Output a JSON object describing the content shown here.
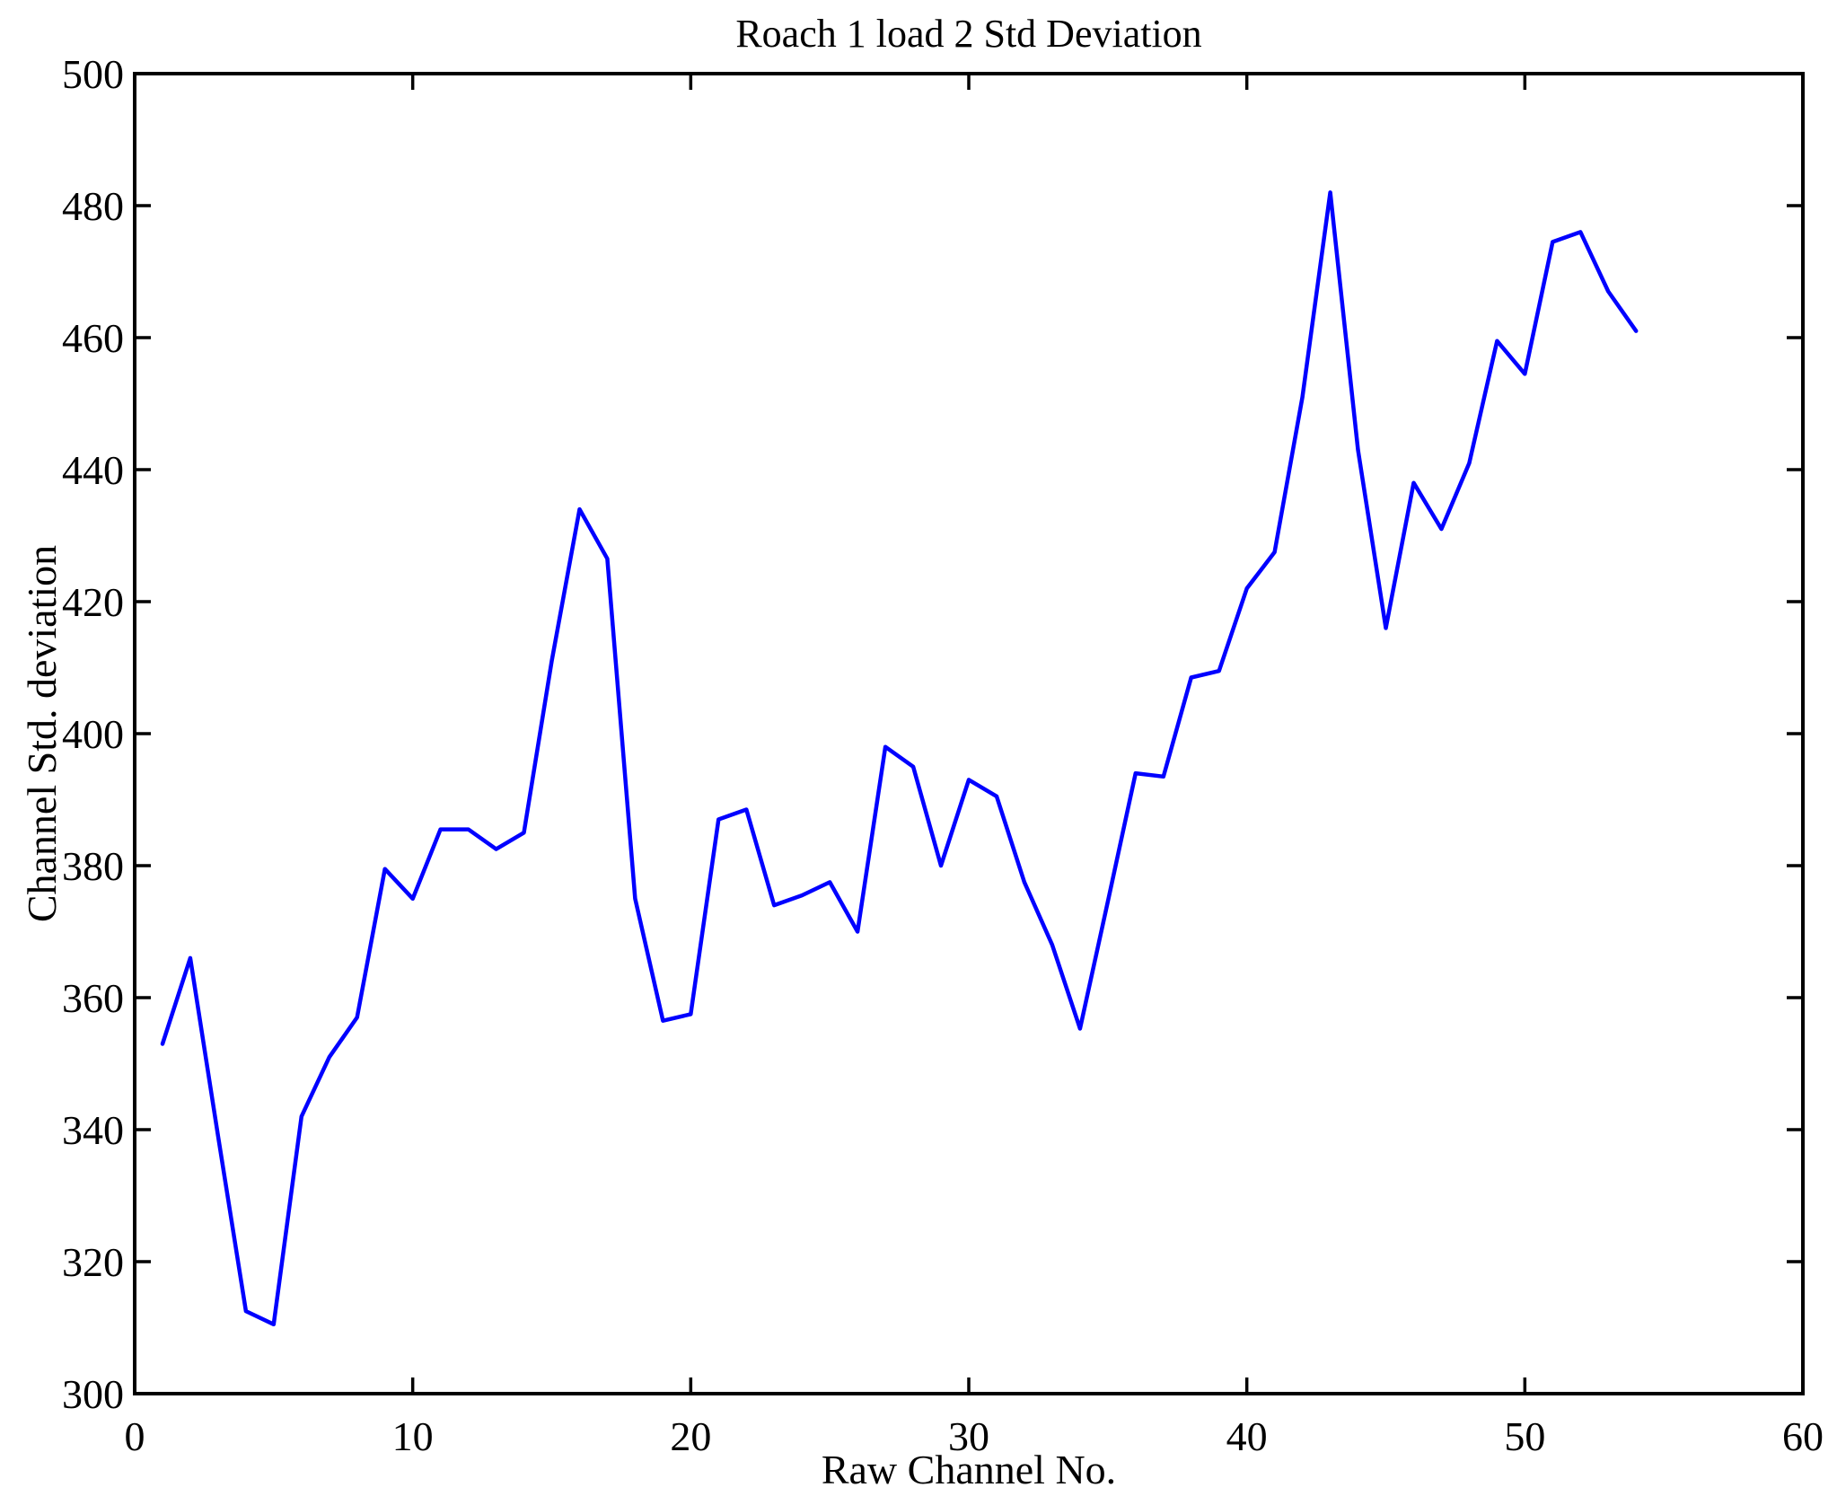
{
  "title": "Roach 1 load 2 Std Deviation",
  "chart_data": {
    "type": "line",
    "title": "Roach 1 load 2 Std Deviation",
    "xlabel": "Raw Channel No.",
    "ylabel": "Channel Std. deviation",
    "xlim": [
      0,
      60
    ],
    "ylim": [
      300,
      500
    ],
    "xticks": [
      0,
      10,
      20,
      30,
      40,
      50,
      60
    ],
    "yticks": [
      300,
      320,
      340,
      360,
      380,
      400,
      420,
      440,
      460,
      480,
      500
    ],
    "grid": false,
    "legend_position": "none",
    "line_color": "#0000FF",
    "axis_color": "#000000",
    "background_color": "#FFFFFF",
    "series": [
      {
        "name": "Channel Std. deviation",
        "x": [
          1,
          2,
          3,
          4,
          5,
          6,
          7,
          8,
          9,
          10,
          11,
          12,
          13,
          14,
          15,
          16,
          17,
          18,
          19,
          20,
          21,
          22,
          23,
          24,
          25,
          26,
          27,
          28,
          29,
          30,
          31,
          32,
          33,
          34,
          35,
          36,
          37,
          38,
          39,
          40,
          41,
          42,
          43,
          44,
          45,
          46,
          47,
          48,
          49,
          50,
          51,
          52,
          53,
          54
        ],
        "values": [
          353,
          366,
          339,
          312.5,
          310.5,
          342,
          351,
          357,
          379.5,
          375,
          385.5,
          385.5,
          382.5,
          385,
          411,
          434,
          426.5,
          375,
          356.5,
          357.5,
          387,
          388.5,
          374,
          375.5,
          377.5,
          370,
          398,
          395,
          380,
          393,
          390.5,
          377.5,
          368,
          355.3,
          374.5,
          394,
          393.5,
          408.5,
          409.5,
          422,
          427.5,
          451,
          482,
          443,
          416,
          438,
          431,
          441,
          459.5,
          454.5,
          474.5,
          476,
          467,
          461
        ]
      }
    ]
  }
}
